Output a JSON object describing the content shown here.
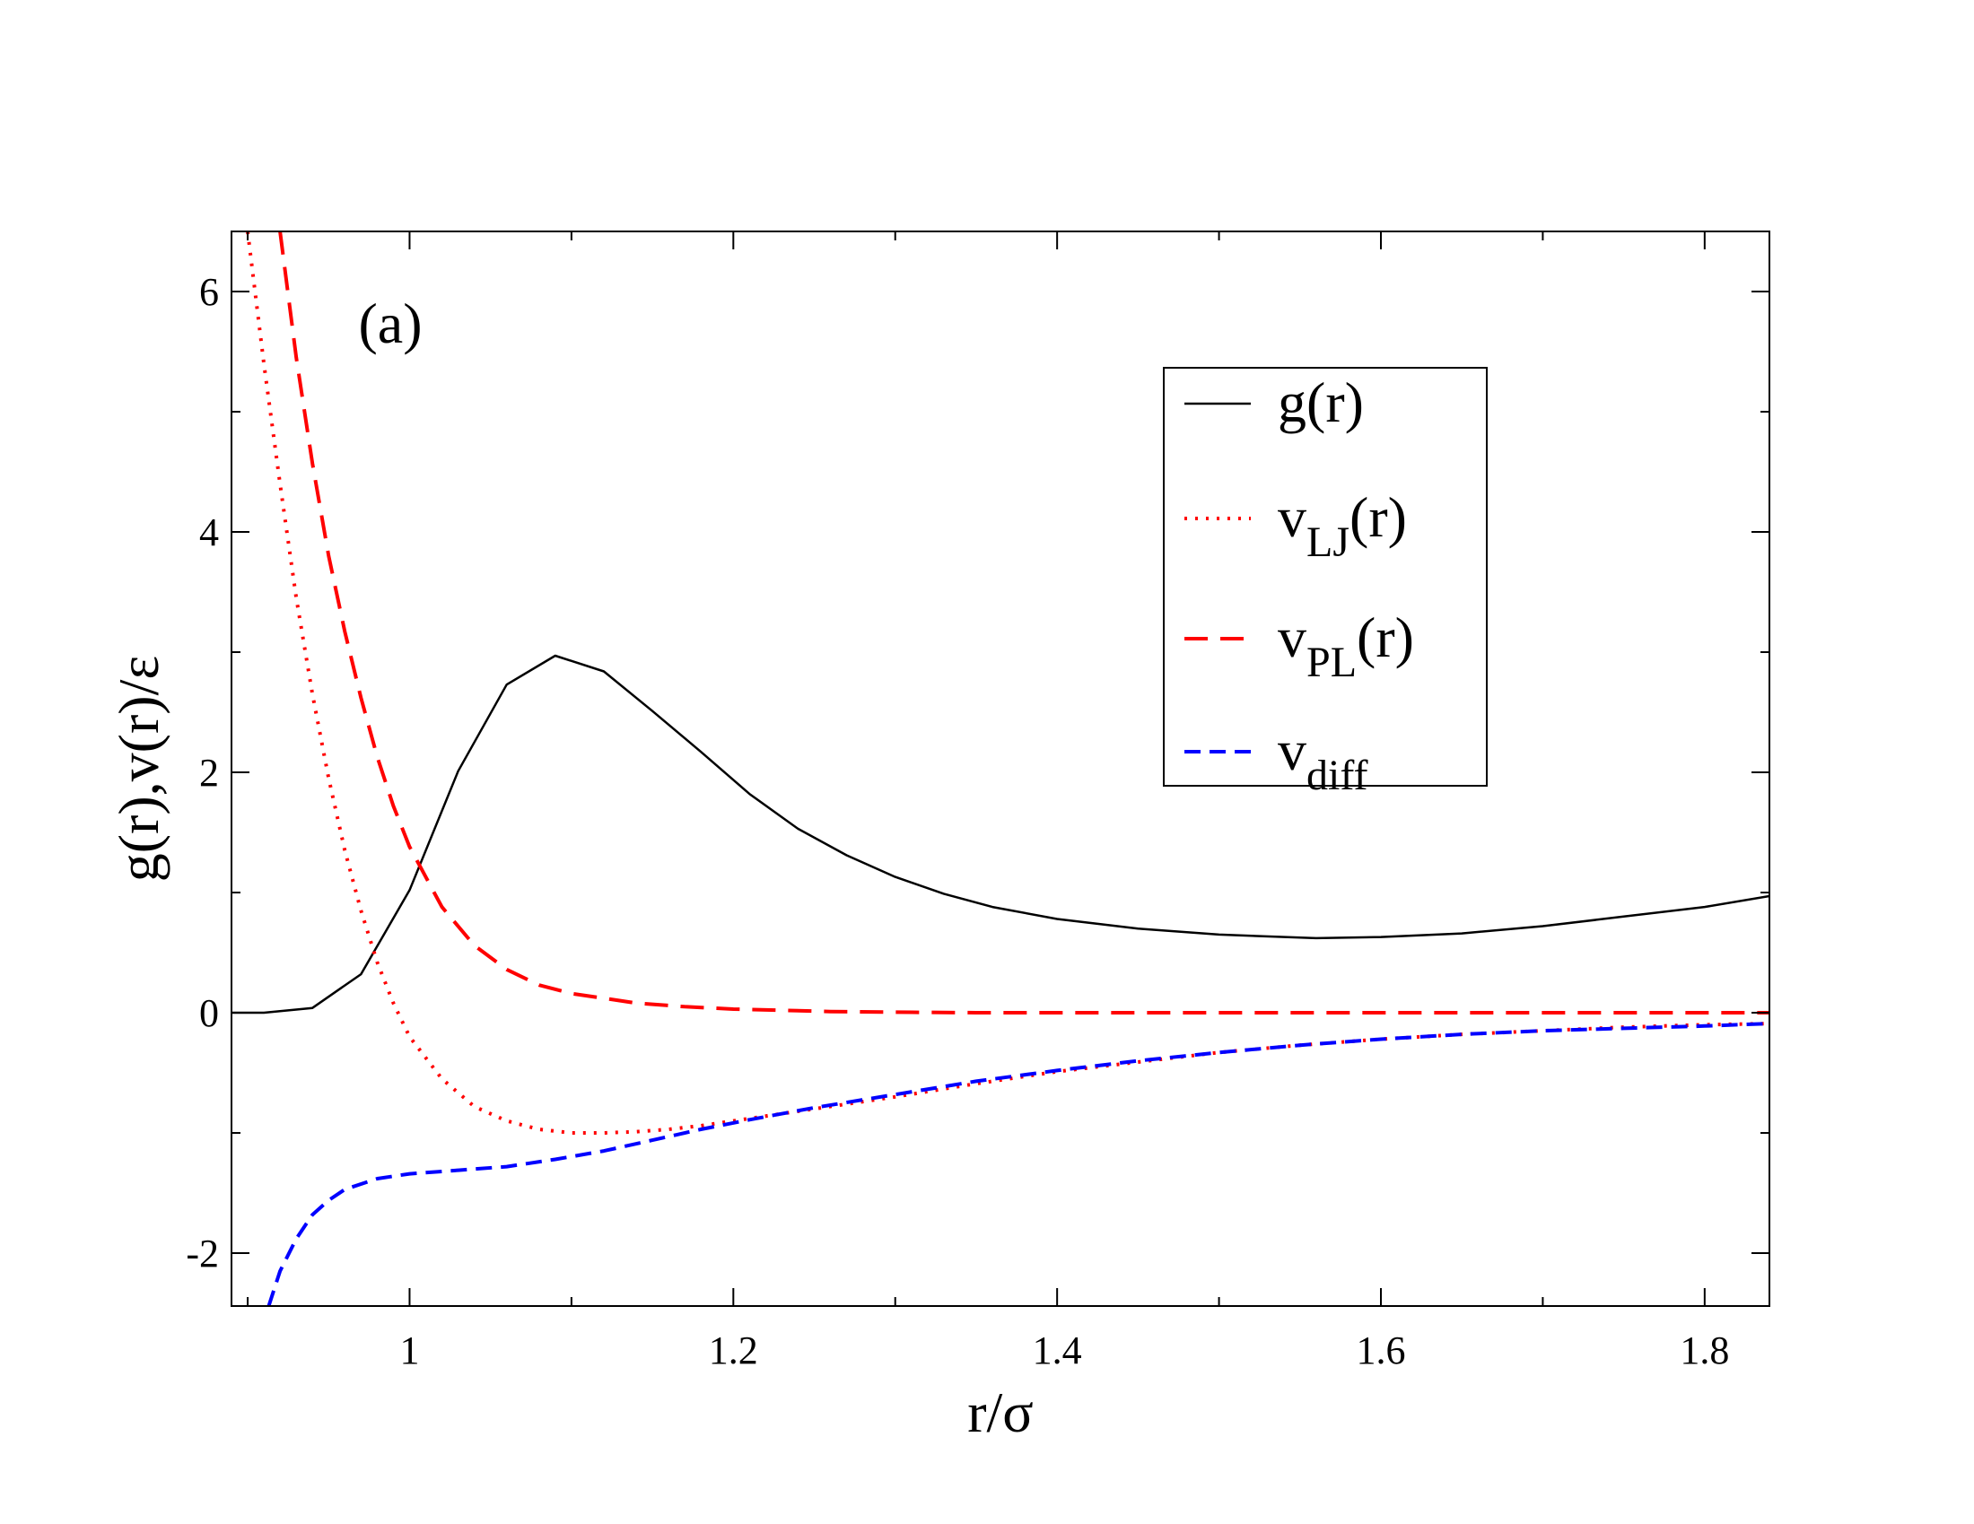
{
  "chart_data": {
    "type": "line",
    "panel_label": "(a)",
    "xlabel": "r/σ",
    "ylabel": "g(r),v(r)/ε",
    "xlim": [
      0.89,
      1.84
    ],
    "ylim": [
      -2.44,
      6.5
    ],
    "x_major_ticks": [
      1,
      1.2,
      1.4,
      1.6,
      1.8
    ],
    "x_tick_labels": [
      "1",
      "1.2",
      "1.4",
      "1.6",
      "1.8"
    ],
    "x_minor_ticks": [
      0.9,
      1.1,
      1.3,
      1.5,
      1.7
    ],
    "y_major_ticks": [
      -2,
      0,
      2,
      4,
      6
    ],
    "y_tick_labels": [
      "-2",
      "0",
      "2",
      "4",
      "6"
    ],
    "y_minor_ticks": [
      -1,
      1,
      3,
      5
    ],
    "grid": false,
    "legend_position": "top-right",
    "series": [
      {
        "name": "g(r)",
        "legend_base": "g(r)",
        "legend_sub": "",
        "legend_suffix": "",
        "color": "#000000",
        "style": "solid",
        "x": [
          0.89,
          0.91,
          0.94,
          0.97,
          1.0,
          1.03,
          1.06,
          1.09,
          1.12,
          1.15,
          1.18,
          1.21,
          1.24,
          1.27,
          1.3,
          1.33,
          1.36,
          1.4,
          1.45,
          1.5,
          1.56,
          1.6,
          1.65,
          1.7,
          1.75,
          1.8,
          1.84
        ],
        "y": [
          0.0,
          0.0,
          0.04,
          0.32,
          1.02,
          2.01,
          2.73,
          2.97,
          2.84,
          2.51,
          2.17,
          1.82,
          1.53,
          1.31,
          1.13,
          0.99,
          0.88,
          0.78,
          0.7,
          0.65,
          0.62,
          0.63,
          0.66,
          0.72,
          0.8,
          0.88,
          0.97
        ]
      },
      {
        "name": "v_LJ(r)",
        "legend_base": "v",
        "legend_sub": "LJ",
        "legend_suffix": "(r)",
        "color": "#ff0000",
        "style": "dotted",
        "x": [
          0.9,
          0.91,
          0.92,
          0.93,
          0.94,
          0.95,
          0.96,
          0.97,
          0.98,
          0.99,
          1.0,
          1.02,
          1.04,
          1.06,
          1.08,
          1.1,
          1.12,
          1.14,
          1.16,
          1.18,
          1.2,
          1.25,
          1.3,
          1.35,
          1.4,
          1.45,
          1.5,
          1.55,
          1.6,
          1.65,
          1.7,
          1.75,
          1.8,
          1.84
        ],
        "y": [
          6.5,
          5.4,
          4.4,
          3.45,
          2.65,
          1.95,
          1.35,
          0.85,
          0.42,
          0.08,
          -0.2,
          -0.55,
          -0.78,
          -0.9,
          -0.97,
          -1.0,
          -1.0,
          -0.99,
          -0.97,
          -0.94,
          -0.9,
          -0.8,
          -0.7,
          -0.59,
          -0.49,
          -0.41,
          -0.33,
          -0.27,
          -0.22,
          -0.18,
          -0.15,
          -0.12,
          -0.1,
          -0.09
        ]
      },
      {
        "name": "v_PL(r)",
        "legend_base": "v",
        "legend_sub": "PL",
        "legend_suffix": "(r)",
        "color": "#ff0000",
        "style": "long-dashed",
        "x": [
          0.92,
          0.93,
          0.94,
          0.95,
          0.96,
          0.97,
          0.98,
          0.99,
          1.0,
          1.02,
          1.04,
          1.06,
          1.08,
          1.1,
          1.12,
          1.14,
          1.17,
          1.2,
          1.23,
          1.26,
          1.3,
          1.35,
          1.4,
          1.5,
          1.6,
          1.7,
          1.84
        ],
        "y": [
          6.5,
          5.45,
          4.57,
          3.8,
          3.17,
          2.62,
          2.13,
          1.72,
          1.38,
          0.88,
          0.56,
          0.36,
          0.23,
          0.16,
          0.12,
          0.08,
          0.05,
          0.03,
          0.02,
          0.01,
          0.005,
          0.0,
          0.0,
          0.0,
          0.0,
          0.0,
          0.0
        ]
      },
      {
        "name": "v_diff",
        "legend_base": "v",
        "legend_sub": "diff",
        "legend_suffix": "",
        "color": "#0000ff",
        "style": "dashed",
        "x": [
          0.913,
          0.92,
          0.93,
          0.94,
          0.95,
          0.96,
          0.98,
          1.0,
          1.03,
          1.06,
          1.09,
          1.12,
          1.15,
          1.18,
          1.21,
          1.25,
          1.3,
          1.35,
          1.4,
          1.45,
          1.5,
          1.55,
          1.6,
          1.65,
          1.7,
          1.75,
          1.8,
          1.84
        ],
        "y": [
          -2.44,
          -2.15,
          -1.88,
          -1.68,
          -1.56,
          -1.47,
          -1.38,
          -1.34,
          -1.31,
          -1.28,
          -1.22,
          -1.15,
          -1.06,
          -0.97,
          -0.89,
          -0.79,
          -0.68,
          -0.57,
          -0.48,
          -0.4,
          -0.33,
          -0.27,
          -0.22,
          -0.18,
          -0.15,
          -0.13,
          -0.11,
          -0.09
        ]
      }
    ]
  }
}
